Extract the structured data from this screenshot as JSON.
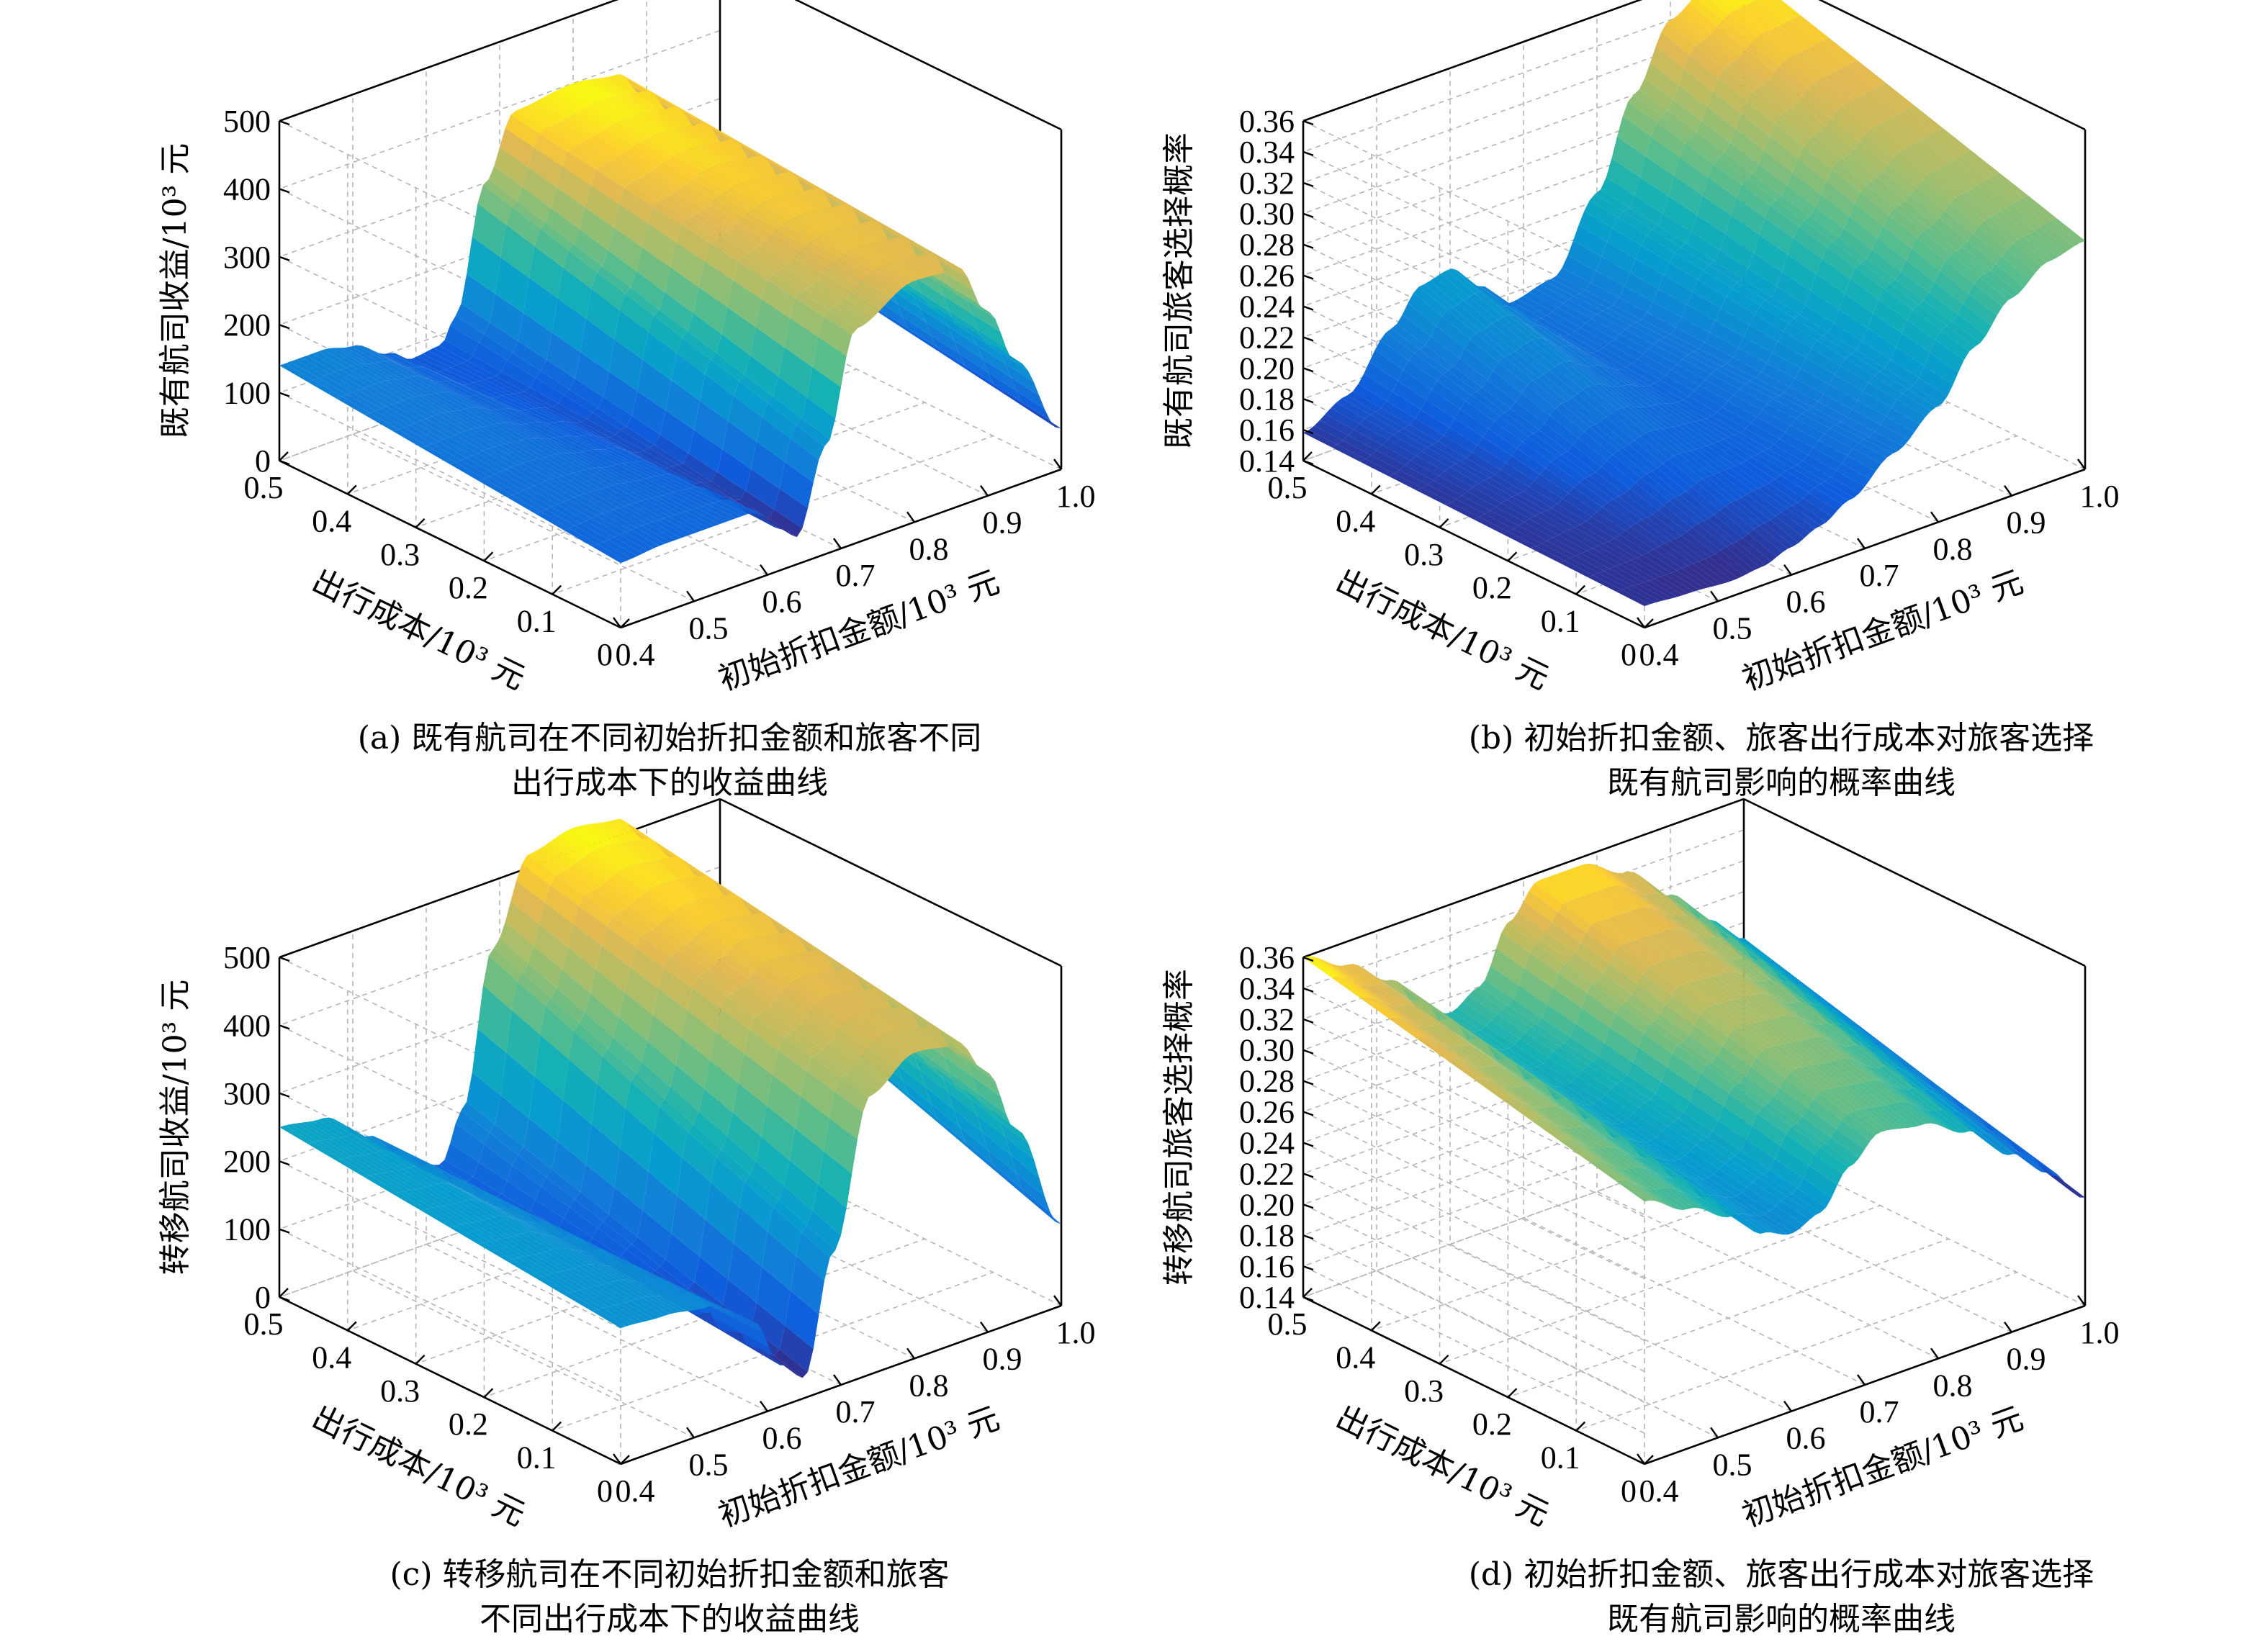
{
  "chart_data": [
    {
      "id": "a",
      "type": "surface",
      "zlabel": "既有航司收益/10³ 元",
      "xlabel": "初始折扣金额/10³ 元",
      "ylabel": "出行成本/10³ 元",
      "x_ticks": [
        "0.4",
        "0.5",
        "0.6",
        "0.7",
        "0.8",
        "0.9",
        "1.0"
      ],
      "y_ticks": [
        "0",
        "0.1",
        "0.2",
        "0.3",
        "0.4",
        "0.5"
      ],
      "z_ticks": [
        "0",
        "100",
        "200",
        "300",
        "400",
        "500"
      ],
      "xlim": [
        0.4,
        1.0
      ],
      "ylim": [
        0,
        0.5
      ],
      "zlim": [
        0,
        500
      ],
      "caption": [
        "(a) 既有航司在不同初始折扣金额和旅客不同",
        "出行成本下的收益曲线"
      ],
      "profile_x": [
        0.4,
        0.46,
        0.5,
        0.55,
        0.58,
        0.62,
        0.64,
        0.68,
        0.72,
        0.8,
        0.86,
        0.9,
        0.94,
        1.0
      ],
      "profile_z_y0": [
        95,
        100,
        100,
        100,
        100,
        60,
        40,
        160,
        315,
        355,
        350,
        270,
        180,
        60
      ],
      "profile_z_y05": [
        140,
        140,
        130,
        100,
        80,
        85,
        120,
        300,
        390,
        400,
        390,
        340,
        260,
        140
      ]
    },
    {
      "id": "b",
      "type": "surface",
      "zlabel": "既有航司旅客选择概率",
      "xlabel": "初始折扣金额/10³ 元",
      "ylabel": "出行成本/10³ 元",
      "x_ticks": [
        "0.4",
        "0.5",
        "0.6",
        "0.7",
        "0.8",
        "0.9",
        "1.0"
      ],
      "y_ticks": [
        "0",
        "0.1",
        "0.2",
        "0.3",
        "0.4",
        "0.5"
      ],
      "z_ticks": [
        "0.14",
        "0.16",
        "0.18",
        "0.20",
        "0.22",
        "0.24",
        "0.26",
        "0.28",
        "0.30",
        "0.32",
        "0.34",
        "0.36"
      ],
      "xlim": [
        0.4,
        1.0
      ],
      "ylim": [
        0,
        0.5
      ],
      "zlim": [
        0.14,
        0.36
      ],
      "caption": [
        "(b) 初始折扣金额、旅客出行成本对旅客选择",
        "既有航司影响的概率曲线"
      ],
      "profile_x": [
        0.4,
        0.46,
        0.52,
        0.56,
        0.6,
        0.64,
        0.68,
        0.74,
        0.8,
        0.85,
        0.9,
        0.95,
        1.0
      ],
      "profile_z_y0": [
        0.154,
        0.152,
        0.15,
        0.152,
        0.158,
        0.165,
        0.175,
        0.195,
        0.215,
        0.245,
        0.268,
        0.283,
        0.288
      ],
      "profile_z_y05": [
        0.158,
        0.172,
        0.205,
        0.226,
        0.23,
        0.212,
        0.194,
        0.2,
        0.245,
        0.3,
        0.34,
        0.353,
        0.355
      ]
    },
    {
      "id": "c",
      "type": "surface",
      "zlabel": "转移航司收益/10³ 元",
      "xlabel": "初始折扣金额/10³ 元",
      "ylabel": "出行成本/10³ 元",
      "x_ticks": [
        "0.4",
        "0.5",
        "0.6",
        "0.7",
        "0.8",
        "0.9",
        "1.0"
      ],
      "y_ticks": [
        "0",
        "0.1",
        "0.2",
        "0.3",
        "0.4",
        "0.5"
      ],
      "z_ticks": [
        "0",
        "100",
        "200",
        "300",
        "400",
        "500"
      ],
      "xlim": [
        0.4,
        1.0
      ],
      "ylim": [
        0,
        0.5
      ],
      "zlim": [
        0,
        500
      ],
      "caption": [
        "(c) 转移航司在不同初始折扣金额和旅客",
        "不同出行成本下的收益曲线"
      ],
      "profile_x": [
        0.4,
        0.46,
        0.52,
        0.58,
        0.62,
        0.65,
        0.69,
        0.74,
        0.8,
        0.86,
        0.9,
        0.94,
        1.0
      ],
      "profile_z_y0": [
        200,
        195,
        185,
        140,
        60,
        30,
        200,
        410,
        450,
        440,
        380,
        280,
        120
      ],
      "profile_z_y05": [
        250,
        240,
        190,
        130,
        110,
        180,
        400,
        520,
        535,
        525,
        480,
        410,
        300
      ]
    },
    {
      "id": "d",
      "type": "surface",
      "zlabel": "转移航司旅客选择概率",
      "xlabel": "初始折扣金额/10³ 元",
      "ylabel": "出行成本/10³ 元",
      "x_ticks": [
        "0.4",
        "0.5",
        "0.6",
        "0.7",
        "0.8",
        "0.9",
        "1.0"
      ],
      "y_ticks": [
        "0",
        "0.1",
        "0.2",
        "0.3",
        "0.4",
        "0.5"
      ],
      "z_ticks": [
        "0.14",
        "0.16",
        "0.18",
        "0.20",
        "0.22",
        "0.24",
        "0.26",
        "0.28",
        "0.30",
        "0.32",
        "0.34",
        "0.36"
      ],
      "xlim": [
        0.4,
        1.0
      ],
      "ylim": [
        0,
        0.5
      ],
      "zlim": [
        0.14,
        0.36
      ],
      "caption": [
        "(d) 初始折扣金额、旅客出行成本对旅客选择",
        "既有航司影响的概率曲线"
      ],
      "profile_x": [
        0.4,
        0.46,
        0.52,
        0.56,
        0.6,
        0.64,
        0.68,
        0.72,
        0.78,
        0.84,
        0.9,
        0.95,
        1.0
      ],
      "profile_z_y0": [
        0.31,
        0.295,
        0.28,
        0.262,
        0.255,
        0.262,
        0.285,
        0.3,
        0.295,
        0.28,
        0.255,
        0.235,
        0.21
      ],
      "profile_z_y05": [
        0.36,
        0.345,
        0.325,
        0.3,
        0.29,
        0.3,
        0.335,
        0.355,
        0.355,
        0.34,
        0.315,
        0.29,
        0.27
      ]
    }
  ]
}
